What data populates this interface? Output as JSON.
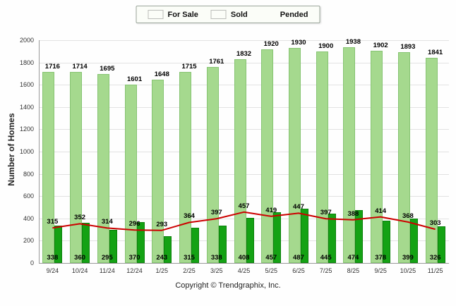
{
  "chart_data": {
    "type": "bar",
    "title": "",
    "xlabel": "",
    "ylabel": "Number of Homes",
    "ylim": [
      0,
      2000
    ],
    "yticks": [
      0,
      200,
      400,
      600,
      800,
      1000,
      1200,
      1400,
      1600,
      1800,
      2000
    ],
    "grid": true,
    "legend_position": "top-center",
    "categories": [
      "9/24",
      "10/24",
      "11/24",
      "12/24",
      "1/25",
      "2/25",
      "3/25",
      "4/25",
      "5/25",
      "6/25",
      "7/25",
      "8/25",
      "9/25",
      "10/25",
      "11/25"
    ],
    "series": [
      {
        "name": "For Sale",
        "type": "bar",
        "color": "#a5d98e",
        "values": [
          1716,
          1714,
          1695,
          1601,
          1648,
          1715,
          1761,
          1832,
          1920,
          1930,
          1900,
          1938,
          1902,
          1893,
          1841
        ]
      },
      {
        "name": "Sold",
        "type": "bar",
        "color": "#14a214",
        "values": [
          338,
          360,
          295,
          370,
          243,
          315,
          338,
          408,
          457,
          487,
          445,
          474,
          378,
          399,
          326
        ]
      },
      {
        "name": "Pended",
        "type": "line",
        "color": "#cc0000",
        "values": [
          315,
          352,
          314,
          296,
          293,
          364,
          397,
          457,
          419,
          447,
          397,
          388,
          414,
          368,
          303
        ]
      }
    ]
  },
  "footer": {
    "text": "Copyright © Trendgraphix, Inc."
  }
}
